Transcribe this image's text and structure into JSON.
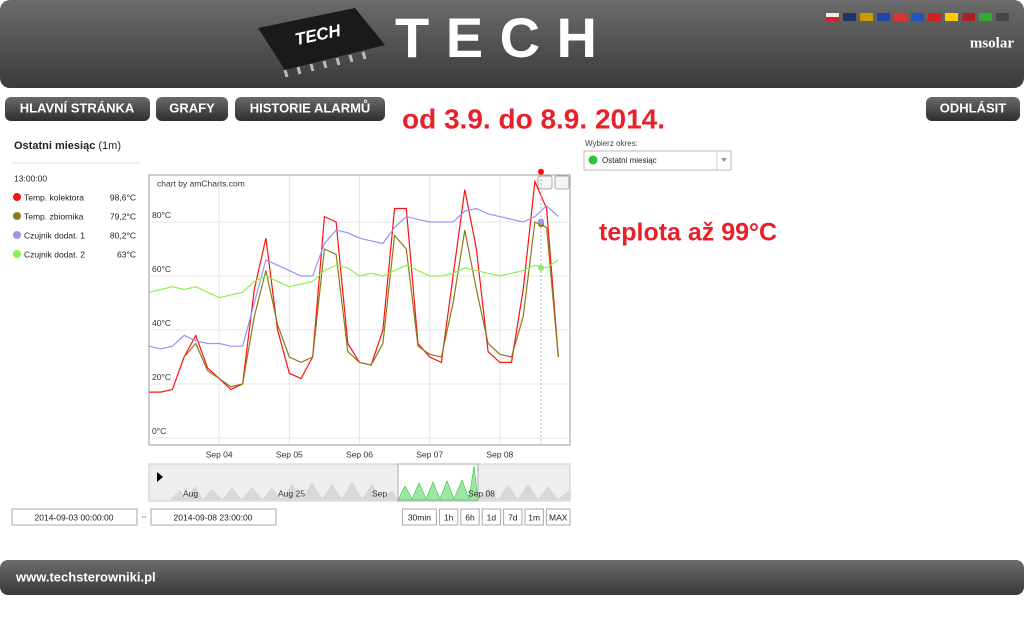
{
  "header": {
    "logo_text": "TECH",
    "user": "msolar"
  },
  "nav": {
    "items": [
      "HLAVNÍ STRÁNKA",
      "GRAFY",
      "HISTORIE ALARMŮ"
    ],
    "logout": "ODHLÁSIT"
  },
  "annotations": {
    "range": "od 3.9. do 8.9. 2014.",
    "note": "teplota až 99°C"
  },
  "panel": {
    "title": "Ostatni miesiąc",
    "title_suffix": "(1m)",
    "period_label": "Wybierz okres:",
    "period_value": "Ostatni miesiąc"
  },
  "chart_data": {
    "type": "line",
    "credit": "chart by amCharts.com",
    "x": [
      0,
      4,
      8,
      12,
      16,
      20,
      24,
      28,
      32,
      36,
      40,
      44,
      48,
      52,
      56,
      60,
      64,
      68,
      72,
      76,
      80,
      84,
      88,
      92,
      96,
      100,
      104,
      108,
      112,
      116,
      120,
      124,
      128,
      132,
      136,
      140
    ],
    "xlim": [
      0,
      144
    ],
    "xticks": [
      {
        "value": 24,
        "label": "Sep 04"
      },
      {
        "value": 48,
        "label": "Sep 05"
      },
      {
        "value": 72,
        "label": "Sep 06"
      },
      {
        "value": 96,
        "label": "Sep 07"
      },
      {
        "value": 120,
        "label": "Sep 08"
      }
    ],
    "ylim": [
      -2.6,
      97.4
    ],
    "yticks": [
      {
        "value": 0,
        "label": "0°C"
      },
      {
        "value": 20,
        "label": "20°C"
      },
      {
        "value": 40,
        "label": "40°C"
      },
      {
        "value": 60,
        "label": "60°C"
      },
      {
        "value": 80,
        "label": "80°C"
      }
    ],
    "grid": true,
    "series": [
      {
        "name": "Temp. kolektora",
        "color": "#ff1010",
        "values": [
          17,
          17,
          18,
          30,
          38,
          26,
          22,
          18,
          20,
          55,
          74,
          40,
          24,
          22,
          30,
          82,
          80,
          35,
          28,
          27,
          40,
          85,
          85,
          35,
          30,
          28,
          60,
          92,
          70,
          32,
          28,
          28,
          55,
          95,
          85,
          30
        ]
      },
      {
        "name": "Temp. zbiornika",
        "color": "#8c7a1a",
        "values": [
          null,
          null,
          null,
          30,
          35,
          25,
          22,
          19,
          20,
          45,
          62,
          42,
          30,
          28,
          30,
          70,
          68,
          32,
          28,
          27,
          35,
          75,
          70,
          34,
          31,
          30,
          50,
          77,
          55,
          35,
          31,
          30,
          45,
          80,
          78,
          30
        ]
      },
      {
        "name": "Czujnik dodat. 1",
        "color": "#9a93f0",
        "values": [
          34,
          33,
          34,
          38,
          36,
          35,
          35,
          34,
          34,
          50,
          66,
          64,
          62,
          60,
          60,
          72,
          77,
          76,
          74,
          73,
          72,
          78,
          82,
          81,
          80,
          80,
          80,
          84,
          85,
          83,
          82,
          81,
          80,
          82,
          86,
          82
        ]
      },
      {
        "name": "Czujnik dodat. 2",
        "color": "#8ef04a",
        "values": [
          54,
          55,
          56,
          55,
          56,
          54,
          52,
          53,
          54,
          58,
          60,
          58,
          56,
          57,
          58,
          62,
          64,
          63,
          60,
          61,
          60,
          62,
          64,
          62,
          60,
          60,
          61,
          63,
          62,
          61,
          60,
          61,
          62,
          64,
          63,
          66
        ]
      }
    ],
    "cursor": {
      "time": "13:00:00",
      "values": [
        98.6,
        79.2,
        80.2,
        63
      ],
      "value_labels": [
        "98,6°C",
        "79,2°C",
        "80,2°C",
        "63°C"
      ]
    },
    "navigator_labels": [
      "Aug",
      "Aug 25",
      "Sep",
      "Sep 08"
    ],
    "start": "2014-09-03 00:00:00",
    "end": "2014-09-08 23:00:00",
    "zoom_buttons": [
      "30min",
      "1h",
      "6h",
      "1d",
      "7d",
      "1m",
      "MAX"
    ]
  },
  "footer": {
    "text": "www.techsterowniki.pl"
  }
}
